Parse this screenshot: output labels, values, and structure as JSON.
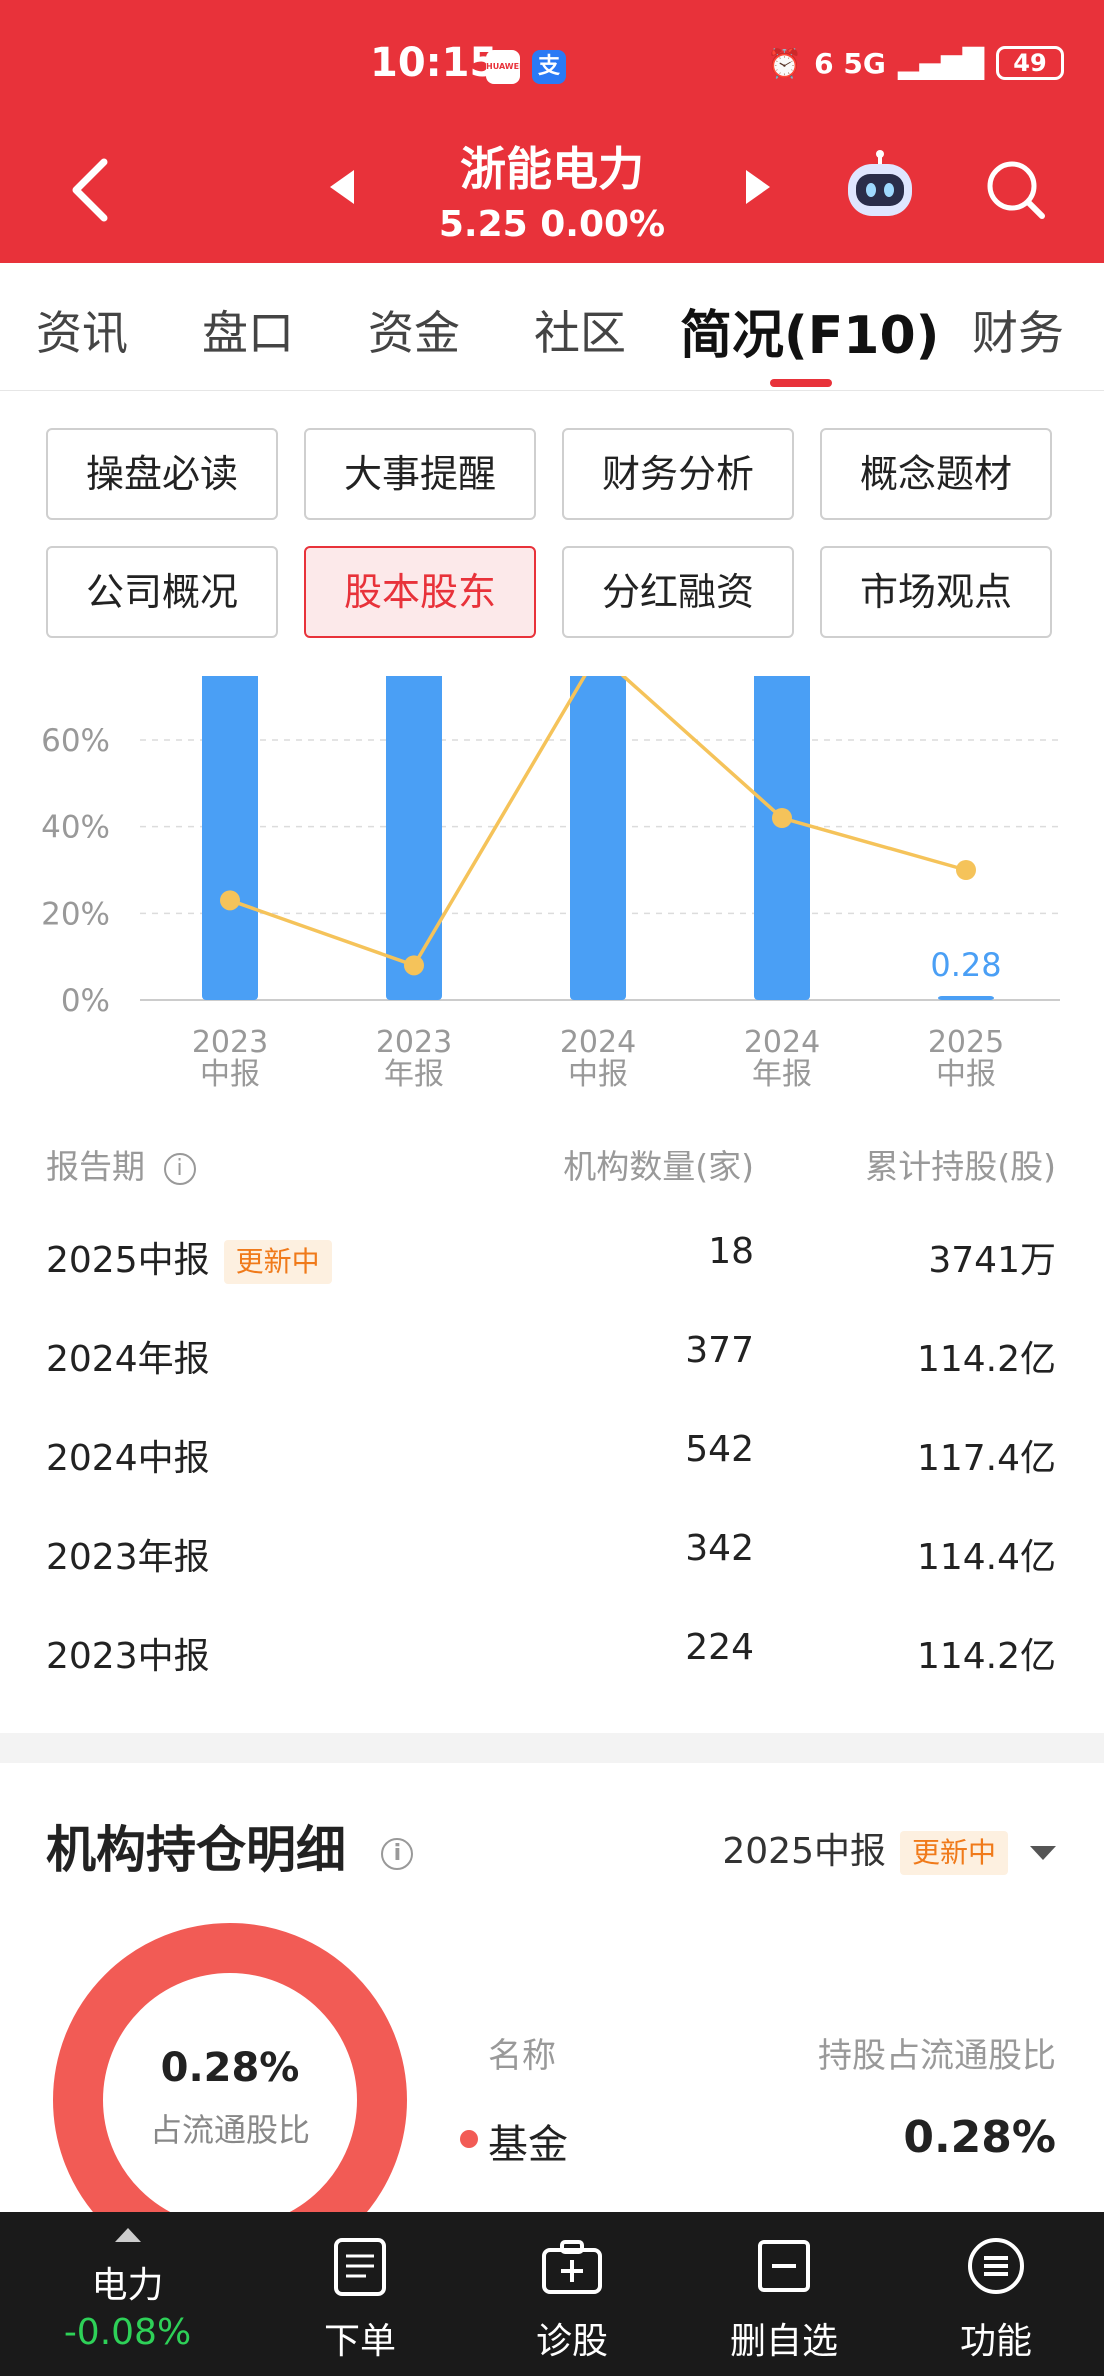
{
  "status_bar": {
    "time": "10:15",
    "app_icon_1": "HUAWEI",
    "app_icon_2": "支",
    "signal": "6 5G",
    "battery": "49"
  },
  "stock": {
    "name": "浙能电力",
    "price_line": "5.25 0.00%"
  },
  "tabs": [
    "资讯",
    "盘口",
    "资金",
    "社区",
    "简况(F10)",
    "财务"
  ],
  "active_tab": "简况(F10)",
  "chips": {
    "row1": [
      "操盘必读",
      "大事提醒",
      "财务分析",
      "概念题材"
    ],
    "row2": [
      "公司概况",
      "股本股东",
      "分红融资",
      "市场观点"
    ],
    "active": "股本股东"
  },
  "chart_data": {
    "type": "bar",
    "categories": [
      "2023\n中报",
      "2023\n年报",
      "2024\n中报",
      "2024\n年报",
      "2025\n中报"
    ],
    "category_lines": [
      [
        "2023",
        "中报"
      ],
      [
        "2023",
        "年报"
      ],
      [
        "2024",
        "中报"
      ],
      [
        "2024",
        "年报"
      ],
      [
        "2025",
        "中报"
      ]
    ],
    "series": [
      {
        "values": [
          80,
          80,
          80,
          80,
          0.28
        ]
      },
      {
        "values": [
          23,
          8,
          80,
          42,
          30
        ]
      }
    ],
    "bar_label": "0.28",
    "ylim": [
      0,
      75
    ],
    "yticks": [
      "0%",
      "20%",
      "40%",
      "60%"
    ],
    "ytick_values": [
      0,
      20,
      40,
      60
    ],
    "grid": true,
    "colors": {
      "bar": "#4a9ff5",
      "line": "#f5c35a",
      "grid": "#dcdcdc"
    }
  },
  "table": {
    "headers": {
      "period": "报告期",
      "count": "机构数量(家)",
      "shares": "累计持股(股)"
    },
    "rows": [
      {
        "period": "2025中报",
        "badge": "更新中",
        "count": "18",
        "shares": "3741万"
      },
      {
        "period": "2024年报",
        "badge": "",
        "count": "377",
        "shares": "114.2亿"
      },
      {
        "period": "2024中报",
        "badge": "",
        "count": "542",
        "shares": "117.4亿"
      },
      {
        "period": "2023年报",
        "badge": "",
        "count": "342",
        "shares": "114.4亿"
      },
      {
        "period": "2023中报",
        "badge": "",
        "count": "224",
        "shares": "114.2亿"
      }
    ]
  },
  "section": {
    "title": "机构持仓明细",
    "period": "2025中报",
    "badge": "更新中"
  },
  "donut": {
    "value": "0.28%",
    "label": "占流通股比",
    "color": "#f25b55"
  },
  "legend": {
    "header_name": "名称",
    "header_ratio": "持股占流通股比",
    "item_name": "基金",
    "item_value": "0.28%"
  },
  "bottom_bar": {
    "sector_name": "电力",
    "sector_change": "-0.08%",
    "order": "下单",
    "diagnose": "诊股",
    "remove_watch": "删自选",
    "functions": "功能"
  }
}
